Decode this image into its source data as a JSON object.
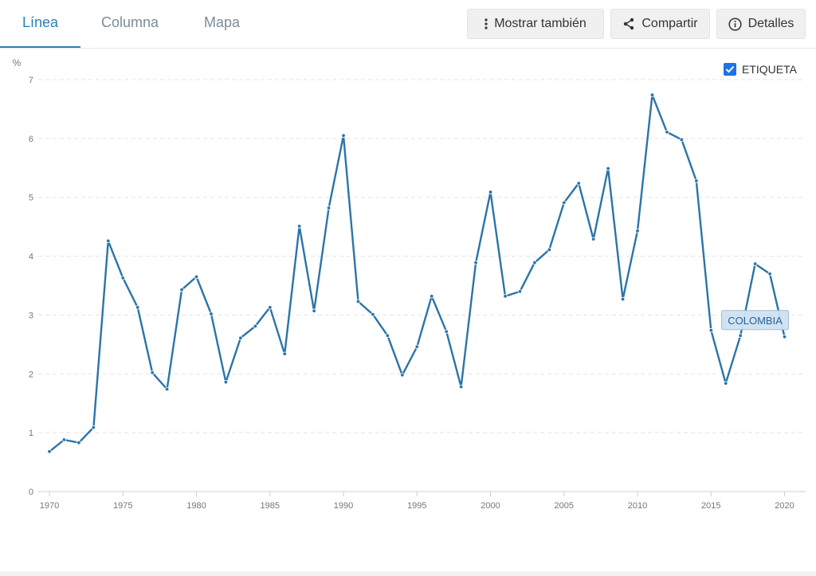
{
  "tabs": [
    {
      "label": "Línea",
      "active": true
    },
    {
      "label": "Columna",
      "active": false
    },
    {
      "label": "Mapa",
      "active": false
    }
  ],
  "toolbar": {
    "more_label": "Mostrar también",
    "share_label": "Compartir",
    "details_label": "Detalles"
  },
  "legend": {
    "label": "ETIQUETA",
    "checked": true
  },
  "colors": {
    "accent": "#2d7fb5",
    "line": "#2b74a8",
    "checkbox": "#1a73e8",
    "tooltip_bg": "#cfe2f3"
  },
  "chart_data": {
    "type": "line",
    "title": "",
    "xlabel": "",
    "ylabel": "%",
    "ylim": [
      0,
      7
    ],
    "xlim": [
      1970,
      2021
    ],
    "yticks": [
      0,
      1,
      2,
      3,
      4,
      5,
      6,
      7
    ],
    "xticks": [
      1970,
      1975,
      1980,
      1985,
      1990,
      1995,
      2000,
      2005,
      2010,
      2015,
      2020
    ],
    "grid": true,
    "series": [
      {
        "name": "COLOMBIA",
        "x": [
          1970,
          1971,
          1972,
          1973,
          1974,
          1975,
          1976,
          1977,
          1978,
          1979,
          1980,
          1981,
          1982,
          1983,
          1984,
          1985,
          1986,
          1987,
          1988,
          1989,
          1990,
          1991,
          1992,
          1993,
          1994,
          1995,
          1996,
          1997,
          1998,
          1999,
          2000,
          2001,
          2002,
          2003,
          2004,
          2005,
          2006,
          2007,
          2008,
          2009,
          2010,
          2011,
          2012,
          2013,
          2014,
          2015,
          2016,
          2017,
          2018,
          2019,
          2020
        ],
        "values": [
          0.68,
          0.88,
          0.83,
          1.09,
          4.26,
          3.63,
          3.13,
          2.02,
          1.74,
          3.43,
          3.65,
          3.02,
          1.86,
          2.61,
          2.81,
          3.13,
          2.34,
          4.51,
          3.07,
          4.82,
          6.05,
          3.23,
          3.01,
          2.65,
          1.98,
          2.46,
          3.32,
          2.72,
          1.78,
          3.89,
          5.09,
          3.32,
          3.4,
          3.89,
          4.11,
          4.91,
          5.24,
          4.29,
          5.49,
          3.27,
          4.43,
          6.74,
          6.11,
          5.98,
          5.28,
          2.74,
          1.84,
          2.65,
          3.87,
          3.7,
          2.63
        ]
      }
    ],
    "tooltip": {
      "label": "COLOMBIA"
    }
  }
}
